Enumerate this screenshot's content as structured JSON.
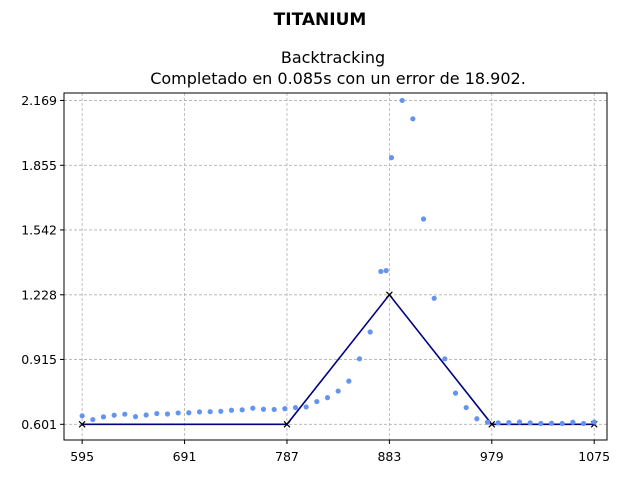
{
  "figure": {
    "suptitle": "TITANIUM"
  },
  "chart_data": {
    "type": "scatter",
    "title_line1": "Backtracking",
    "title_line2": "Completado en 0.085s con un error de 18.902.",
    "xlabel": "",
    "ylabel": "",
    "xlim": [
      578,
      1087
    ],
    "ylim": [
      0.525,
      2.205
    ],
    "xticks": [
      595,
      691,
      787,
      883,
      979,
      1075
    ],
    "yticks": [
      0.601,
      0.915,
      1.228,
      1.542,
      1.855,
      2.169
    ],
    "ytick_labels": [
      "0.601",
      "0.915",
      "1.228",
      "1.542",
      "1.855",
      "2.169"
    ],
    "grid": true,
    "colors": {
      "points": "#6495ed",
      "fit": "#000080"
    },
    "series": [
      {
        "type": "scatter",
        "x": [
          595,
          605,
          615,
          625,
          635,
          645,
          655,
          665,
          675,
          685,
          695,
          705,
          715,
          725,
          735,
          745,
          755,
          765,
          775,
          785,
          795,
          805,
          815,
          825,
          835,
          845,
          855,
          865,
          875,
          880,
          885,
          895,
          905,
          915,
          925,
          935,
          945,
          955,
          965,
          975,
          985,
          995,
          1005,
          1015,
          1025,
          1035,
          1045,
          1055,
          1065,
          1075
        ],
        "y": [
          0.642,
          0.624,
          0.637,
          0.645,
          0.65,
          0.638,
          0.646,
          0.653,
          0.651,
          0.656,
          0.657,
          0.661,
          0.662,
          0.664,
          0.669,
          0.671,
          0.679,
          0.674,
          0.673,
          0.677,
          0.682,
          0.685,
          0.711,
          0.73,
          0.762,
          0.81,
          0.918,
          1.048,
          1.341,
          1.345,
          1.892,
          2.169,
          2.08,
          1.595,
          1.211,
          0.918,
          0.752,
          0.682,
          0.628,
          0.611,
          0.608,
          0.609,
          0.612,
          0.608,
          0.605,
          0.606,
          0.605,
          0.611,
          0.605,
          0.612
        ]
      },
      {
        "type": "line",
        "x": [
          595,
          787,
          883,
          979,
          1075
        ],
        "y": [
          0.601,
          0.601,
          1.228,
          0.601,
          0.601
        ]
      }
    ]
  }
}
